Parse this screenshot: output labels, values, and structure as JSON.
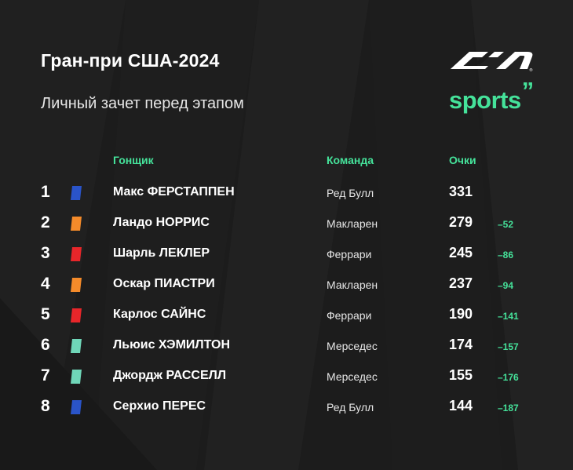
{
  "header": {
    "title": "Гран-при США-2024",
    "subtitle": "Личный зачет перед этапом"
  },
  "brand": {
    "f1_logo_icon": "f1-logo-icon",
    "sports_text": "sports",
    "sports_mark": "”"
  },
  "columns": {
    "driver": "Гонщик",
    "team": "Команда",
    "points": "Очки"
  },
  "colors": {
    "background": "#1c1c1c",
    "accent": "#45e29a",
    "red_bull": "#2a54c9",
    "mclaren": "#f58b2a",
    "ferrari": "#e8262a",
    "mercedes": "#6fd6b8"
  },
  "standings": [
    {
      "pos": "1",
      "driver": "Макс ФЕРСТАППЕН",
      "team": "Ред Булл",
      "points": "331",
      "gap": "",
      "color": "#2a54c9"
    },
    {
      "pos": "2",
      "driver": "Ландо НОРРИС",
      "team": "Макларен",
      "points": "279",
      "gap": "–52",
      "color": "#f58b2a"
    },
    {
      "pos": "3",
      "driver": "Шарль ЛЕКЛЕР",
      "team": "Феррари",
      "points": "245",
      "gap": "–86",
      "color": "#e8262a"
    },
    {
      "pos": "4",
      "driver": "Оскар ПИАСТРИ",
      "team": "Макларен",
      "points": "237",
      "gap": "–94",
      "color": "#f58b2a"
    },
    {
      "pos": "5",
      "driver": "Карлос САЙНС",
      "team": "Феррари",
      "points": "190",
      "gap": "–141",
      "color": "#e8262a"
    },
    {
      "pos": "6",
      "driver": "Льюис ХЭМИЛТОН",
      "team": "Мерседес",
      "points": "174",
      "gap": "–157",
      "color": "#6fd6b8"
    },
    {
      "pos": "7",
      "driver": "Джордж РАССЕЛЛ",
      "team": "Мерседес",
      "points": "155",
      "gap": "–176",
      "color": "#6fd6b8"
    },
    {
      "pos": "8",
      "driver": "Серхио ПЕРЕС",
      "team": "Ред Булл",
      "points": "144",
      "gap": "–187",
      "color": "#2a54c9"
    }
  ]
}
